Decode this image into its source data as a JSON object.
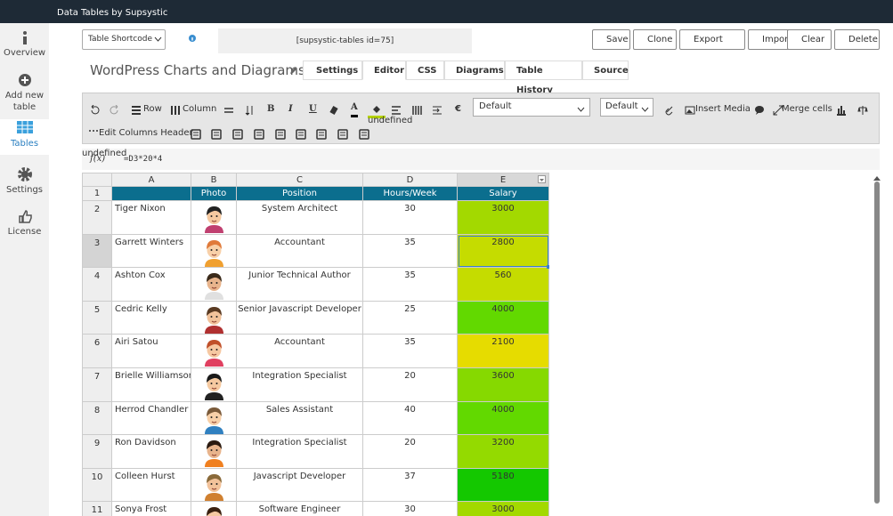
{
  "app_title": "Data Tables by Supsystic",
  "sidebar": [
    "Overview",
    "Add new table",
    "Tables",
    "Settings",
    "License"
  ],
  "active_sidebar": 2,
  "shortcode_select": "Table Shortcode",
  "shortcode": "[supsystic-tables id=75]",
  "actions": [
    "Save",
    "Clone",
    "Export",
    "Import",
    "Clear",
    "Delete"
  ],
  "table_title": "WordPress Charts and Diagrams",
  "tabs": [
    "Settings",
    "Editor",
    "CSS",
    "Diagrams",
    "Table History",
    "Source"
  ],
  "active_tab": 1,
  "toolbar": {
    "row": "Row",
    "column": "Column",
    "format": [
      "B",
      "I",
      "U",
      "A"
    ],
    "currency": "€",
    "font_select": "Default",
    "size_select": "Default",
    "insert_media": "Insert Media",
    "merge_cells": "Merge cells",
    "edit_columns_header": "Edit Columns Header"
  },
  "formula": {
    "label": "f(x)",
    "value": "=D3*20*4"
  },
  "sheet": {
    "column_letters": [
      "A",
      "B",
      "C",
      "D",
      "E"
    ],
    "header_number": "1",
    "header": [
      "Photo",
      "Position",
      "Hours/Week",
      "Salary"
    ],
    "header_color": "#0b6e8e",
    "selected_row": 1,
    "rows": [
      {
        "number": "2",
        "name": "Tiger Nixon",
        "position": "System Architect",
        "hours": 30,
        "salary": 3000,
        "color": "#a3d900"
      },
      {
        "number": "3",
        "name": "Garrett Winters",
        "position": "Accountant",
        "hours": 35,
        "salary": 2800,
        "color": "#c5dc00"
      },
      {
        "number": "4",
        "name": "Ashton Cox",
        "position": "Junior Technical Author",
        "hours": 35,
        "salary": 560,
        "color": "#c5dc00"
      },
      {
        "number": "5",
        "name": "Cedric Kelly",
        "position": "Senior Javascript Developer",
        "hours": 25,
        "salary": 4000,
        "color": "#62d900"
      },
      {
        "number": "6",
        "name": "Airi Satou",
        "position": "Accountant",
        "hours": 35,
        "salary": 2100,
        "color": "#e6dc00"
      },
      {
        "number": "7",
        "name": "Brielle Williamson",
        "position": "Integration Specialist",
        "hours": 20,
        "salary": 3600,
        "color": "#86d900"
      },
      {
        "number": "8",
        "name": "Herrod Chandler",
        "position": "Sales Assistant",
        "hours": 40,
        "salary": 4000,
        "color": "#62d900"
      },
      {
        "number": "9",
        "name": "Ron Davidson",
        "position": "Integration Specialist",
        "hours": 20,
        "salary": 3200,
        "color": "#94da00"
      },
      {
        "number": "10",
        "name": "Colleen Hurst",
        "position": "Javascript Developer",
        "hours": 37,
        "salary": 5180,
        "color": "#14c800"
      },
      {
        "number": "11",
        "name": "Sonya Frost",
        "position": "Software Engineer",
        "hours": 30,
        "salary": 3000,
        "color": "#a3d900"
      }
    ]
  }
}
